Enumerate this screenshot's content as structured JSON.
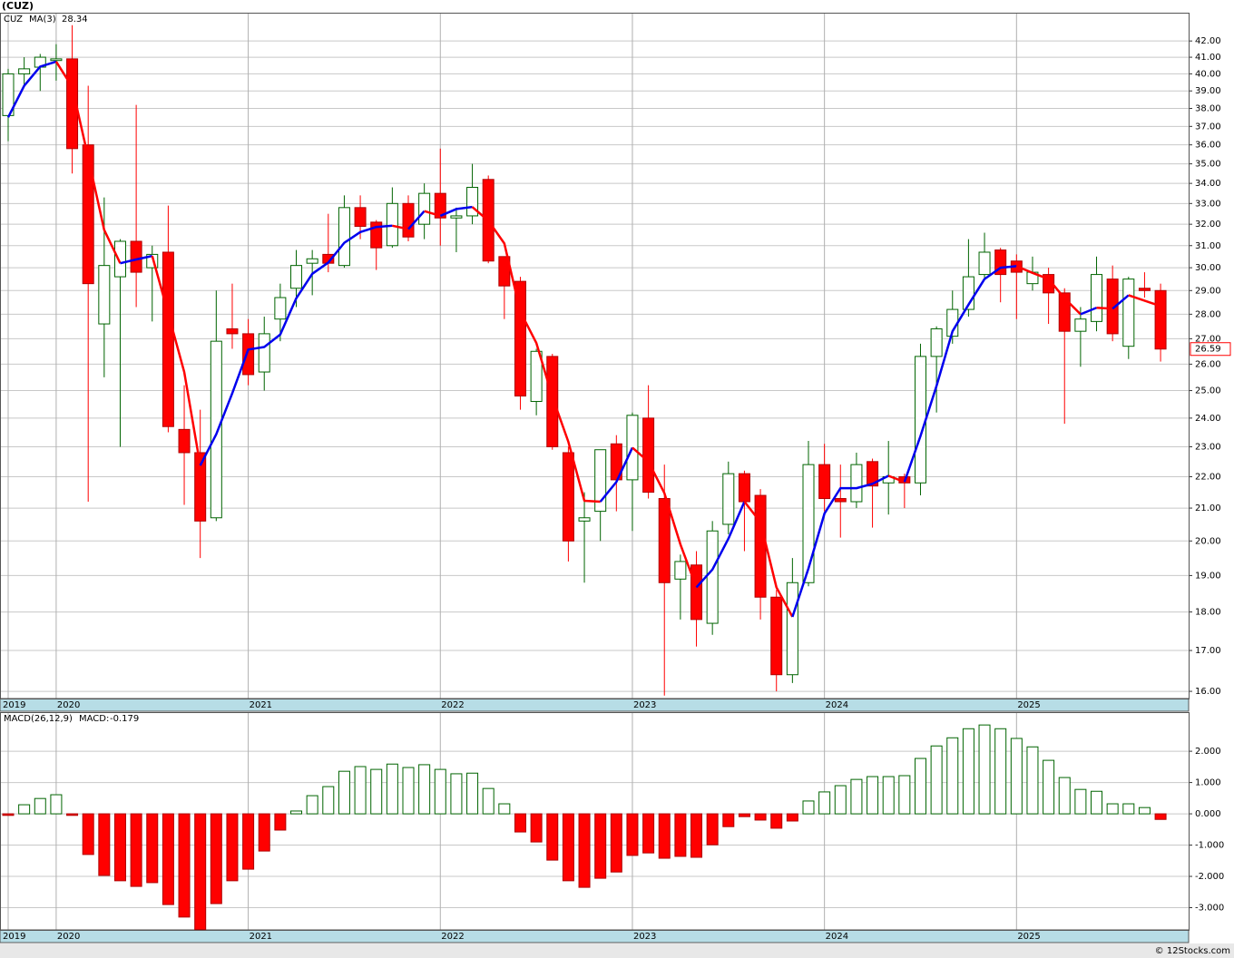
{
  "chart_data": [
    {
      "type": "candlestick",
      "title": "(CUZ)",
      "log_scale": true,
      "grid": true,
      "up_color": "#006400",
      "down_color": "#ff0000",
      "categories": [
        "2019",
        null,
        null,
        "2020",
        null,
        null,
        null,
        null,
        null,
        null,
        null,
        null,
        null,
        null,
        null,
        "2021",
        null,
        null,
        null,
        null,
        null,
        null,
        null,
        null,
        null,
        null,
        null,
        "2022",
        null,
        null,
        null,
        null,
        null,
        null,
        null,
        null,
        null,
        null,
        null,
        "2023",
        null,
        null,
        null,
        null,
        null,
        null,
        null,
        null,
        null,
        null,
        null,
        "2024",
        null,
        null,
        null,
        null,
        null,
        null,
        null,
        null,
        null,
        null,
        null,
        "2025",
        null,
        null,
        null,
        null,
        null,
        null,
        null,
        null,
        null
      ],
      "series": [
        {
          "name": "CUZ",
          "open": [
            37.6,
            40.0,
            40.4,
            40.8,
            40.9,
            36.0,
            27.6,
            29.6,
            31.2,
            30.0,
            30.7,
            23.6,
            22.8,
            20.7,
            27.4,
            27.2,
            25.7,
            27.8,
            29.1,
            30.2,
            30.6,
            30.1,
            32.8,
            32.1,
            31.0,
            33.0,
            32.0,
            33.5,
            32.3,
            32.4,
            34.2,
            30.5,
            29.4,
            24.6,
            26.3,
            22.8,
            20.6,
            20.9,
            23.1,
            21.9,
            24.0,
            21.3,
            18.9,
            19.3,
            17.7,
            20.5,
            22.1,
            21.4,
            18.4,
            16.4,
            18.8,
            22.4,
            21.3,
            21.2,
            22.5,
            21.8,
            22.0,
            21.8,
            26.3,
            27.1,
            28.2,
            29.7,
            30.8,
            30.3,
            29.3,
            29.7,
            28.9,
            27.3,
            27.7,
            29.5,
            26.7,
            29.1,
            29.0
          ],
          "high": [
            40.3,
            41.0,
            41.2,
            41.8,
            43.0,
            39.3,
            33.3,
            31.3,
            38.2,
            31.0,
            32.9,
            25.2,
            24.3,
            29.0,
            29.3,
            27.8,
            27.9,
            29.3,
            30.8,
            30.8,
            32.5,
            33.4,
            33.4,
            32.2,
            33.8,
            33.4,
            34.0,
            35.8,
            32.8,
            35.0,
            34.4,
            30.5,
            29.6,
            26.6,
            26.4,
            23.0,
            21.5,
            22.9,
            23.4,
            24.2,
            25.2,
            22.4,
            19.6,
            19.7,
            20.6,
            22.5,
            22.2,
            21.6,
            18.6,
            19.5,
            23.2,
            23.1,
            22.4,
            22.8,
            22.6,
            23.2,
            22.1,
            26.8,
            27.5,
            29.0,
            31.3,
            31.6,
            30.9,
            30.6,
            30.5,
            30.0,
            29.1,
            28.3,
            30.5,
            30.1,
            29.6,
            29.8,
            29.3
          ],
          "low": [
            36.2,
            39.3,
            39.0,
            39.6,
            34.5,
            21.2,
            25.5,
            23.0,
            28.3,
            27.7,
            23.5,
            21.1,
            19.5,
            20.6,
            26.6,
            25.2,
            25.0,
            26.9,
            28.3,
            28.8,
            29.8,
            30.0,
            31.3,
            29.9,
            30.9,
            31.2,
            31.3,
            31.0,
            30.7,
            32.0,
            30.2,
            27.8,
            24.3,
            24.1,
            22.9,
            19.4,
            18.8,
            20.0,
            20.9,
            20.3,
            21.3,
            15.9,
            17.8,
            17.1,
            17.4,
            20.2,
            19.7,
            17.8,
            16.0,
            16.2,
            18.7,
            20.9,
            20.1,
            21.0,
            20.4,
            20.8,
            21.0,
            21.4,
            24.2,
            26.8,
            27.9,
            29.5,
            28.5,
            27.8,
            29.0,
            27.6,
            23.8,
            25.9,
            27.3,
            26.9,
            26.2,
            28.7,
            26.1
          ],
          "close": [
            40.0,
            40.3,
            41.0,
            40.9,
            35.8,
            29.3,
            30.1,
            31.2,
            29.8,
            30.6,
            23.7,
            22.8,
            20.6,
            26.9,
            27.2,
            25.6,
            27.2,
            28.7,
            30.1,
            30.4,
            30.2,
            32.8,
            31.9,
            30.9,
            33.0,
            31.4,
            33.5,
            32.3,
            32.4,
            33.8,
            30.3,
            29.2,
            24.8,
            26.5,
            23.0,
            20.0,
            20.7,
            22.9,
            21.9,
            24.1,
            21.5,
            18.8,
            19.4,
            17.8,
            20.3,
            22.1,
            21.2,
            18.4,
            16.4,
            18.8,
            22.4,
            21.3,
            21.2,
            22.4,
            21.7,
            22.0,
            21.8,
            26.3,
            27.4,
            28.2,
            29.6,
            30.7,
            29.7,
            29.8,
            29.8,
            28.9,
            27.3,
            27.8,
            29.7,
            27.2,
            29.5,
            29.0,
            26.59
          ]
        },
        {
          "name": "MA(3)",
          "color": "#0000ee",
          "down_color": "#ff0000",
          "values": [
            37.5,
            39.3,
            40.43,
            40.73,
            39.23,
            35.33,
            31.73,
            30.2,
            30.37,
            30.53,
            28.03,
            25.7,
            22.37,
            23.43,
            24.9,
            26.57,
            26.67,
            27.17,
            28.67,
            29.73,
            30.23,
            31.13,
            31.63,
            31.87,
            31.93,
            31.77,
            32.63,
            32.4,
            32.73,
            32.83,
            32.17,
            31.1,
            28.1,
            26.83,
            24.77,
            23.17,
            21.23,
            21.2,
            21.83,
            22.97,
            22.5,
            21.47,
            19.9,
            18.67,
            19.17,
            20.07,
            21.2,
            20.57,
            18.67,
            17.87,
            19.2,
            20.83,
            21.63,
            21.63,
            21.77,
            22.03,
            21.83,
            23.37,
            25.17,
            27.3,
            28.4,
            29.5,
            30,
            30.07,
            29.77,
            29.5,
            28.67,
            28.0,
            28.27,
            28.23,
            28.8,
            28.57,
            28.34
          ]
        }
      ],
      "ylim": [
        15.83,
        43.8
      ],
      "yticks": [
        {
          "value": 16,
          "label": "16.00"
        },
        {
          "value": 17,
          "label": "17.00"
        },
        {
          "value": 18,
          "label": "18.00"
        },
        {
          "value": 19,
          "label": "19.00"
        },
        {
          "value": 20,
          "label": "20.00"
        },
        {
          "value": 21,
          "label": "21.00"
        },
        {
          "value": 22,
          "label": "22.00"
        },
        {
          "value": 23,
          "label": "23.00"
        },
        {
          "value": 24,
          "label": "24.00"
        },
        {
          "value": 25,
          "label": "25.00"
        },
        {
          "value": 26,
          "label": "26.00"
        },
        {
          "value": 27,
          "label": "27.00"
        },
        {
          "value": 28,
          "label": "28.00"
        },
        {
          "value": 29,
          "label": "29.00"
        },
        {
          "value": 30,
          "label": "30.00"
        },
        {
          "value": 31,
          "label": "31.00"
        },
        {
          "value": 32,
          "label": "32.00"
        },
        {
          "value": 33,
          "label": "33.00"
        },
        {
          "value": 34,
          "label": "34.00"
        },
        {
          "value": 35,
          "label": "35.00"
        },
        {
          "value": 36,
          "label": "36.00"
        },
        {
          "value": 37,
          "label": "37.00"
        },
        {
          "value": 38,
          "label": "38.00"
        },
        {
          "value": 39,
          "label": "39.00"
        },
        {
          "value": 40,
          "label": "40.00"
        },
        {
          "value": 41,
          "label": "41.00"
        },
        {
          "value": 42,
          "label": "42.00"
        }
      ]
    },
    {
      "type": "bar",
      "title": "MACD(26,12,9)",
      "value_title": "MACD:",
      "grid": true,
      "up_color": "#006400",
      "down_color": "#ff0000",
      "categories": [
        "2019",
        null,
        null,
        "2020",
        null,
        null,
        null,
        null,
        null,
        null,
        null,
        null,
        null,
        null,
        null,
        "2021",
        null,
        null,
        null,
        null,
        null,
        null,
        null,
        null,
        null,
        null,
        null,
        "2022",
        null,
        null,
        null,
        null,
        null,
        null,
        null,
        null,
        null,
        null,
        null,
        "2023",
        null,
        null,
        null,
        null,
        null,
        null,
        null,
        null,
        null,
        null,
        null,
        "2024",
        null,
        null,
        null,
        null,
        null,
        null,
        null,
        null,
        null,
        null,
        null,
        "2025",
        null,
        null,
        null,
        null,
        null,
        null,
        null,
        null,
        null
      ],
      "values": [
        -0.05,
        0.29,
        0.49,
        0.61,
        -0.05,
        -1.3,
        -1.97,
        -2.14,
        -2.32,
        -2.2,
        -2.9,
        -3.3,
        -3.7,
        -2.87,
        -2.14,
        -1.77,
        -1.19,
        -0.52,
        0.09,
        0.58,
        0.87,
        1.36,
        1.51,
        1.42,
        1.59,
        1.48,
        1.57,
        1.42,
        1.28,
        1.3,
        0.81,
        0.32,
        -0.58,
        -0.9,
        -1.48,
        -2.14,
        -2.35,
        -2.06,
        -1.86,
        -1.33,
        -1.25,
        -1.42,
        -1.36,
        -1.39,
        -0.99,
        -0.41,
        -0.09,
        -0.2,
        -0.46,
        -0.23,
        0.41,
        0.7,
        0.9,
        1.1,
        1.19,
        1.19,
        1.22,
        1.77,
        2.17,
        2.43,
        2.72,
        2.84,
        2.72,
        2.41,
        2.14,
        1.71,
        1.16,
        0.78,
        0.72,
        0.32,
        0.32,
        0.2,
        -0.179
      ],
      "ylim": [
        -3.71,
        3.25
      ],
      "yticks": [
        {
          "value": 2,
          "label": "2.000"
        },
        {
          "value": 1,
          "label": "1.000"
        },
        {
          "value": 0,
          "label": "0.000"
        },
        {
          "value": -1,
          "label": "-1.000"
        },
        {
          "value": -2,
          "label": "-2.000"
        },
        {
          "value": -3,
          "label": "-3.000"
        }
      ]
    }
  ],
  "footer": "© 12Stocks.com"
}
